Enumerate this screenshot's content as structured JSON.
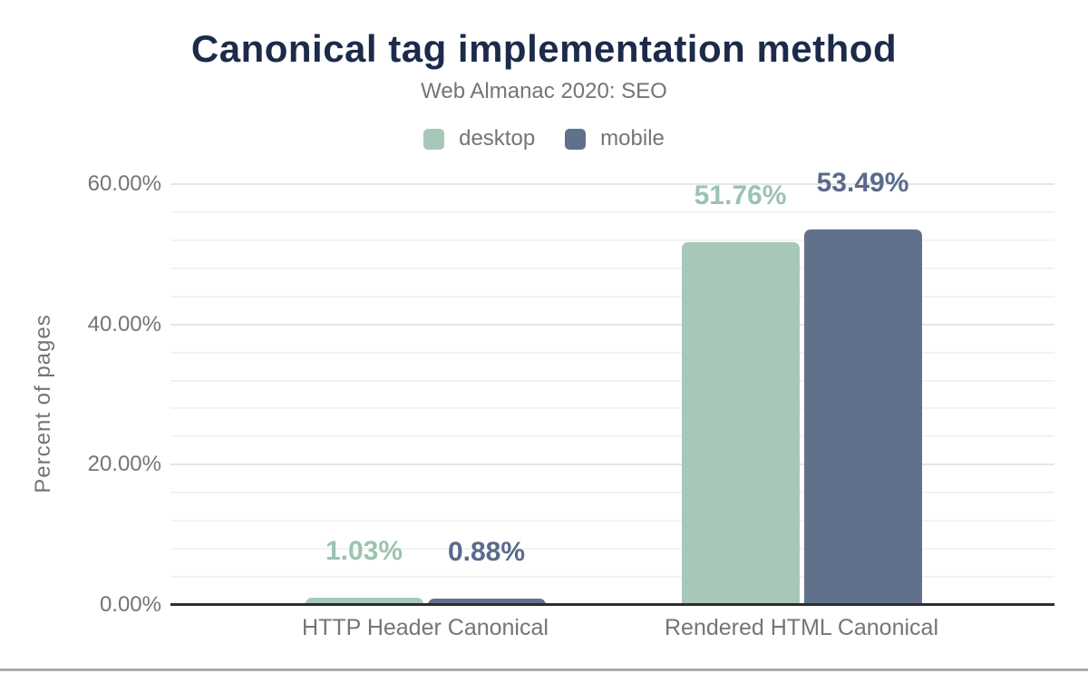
{
  "header": {
    "title": "Canonical tag implementation method",
    "subtitle": "Web Almanac 2020: SEO"
  },
  "colors": {
    "title_text": "#1c2b4a",
    "muted_text": "#757575",
    "axis_line": "#2d2d2d",
    "grid_major": "#e6e6e6",
    "grid_minor": "#f3f3f3",
    "bottom_bar": "#a8abb1",
    "desktop": "#a7c8b9",
    "desktop_label": "#9cc3b1",
    "mobile": "#62718b",
    "mobile_label": "#5a6a8c"
  },
  "chart_data": {
    "type": "bar",
    "title": "Canonical tag implementation method",
    "subtitle": "Web Almanac 2020: SEO",
    "categories": [
      "HTTP Header Canonical",
      "Rendered HTML Canonical"
    ],
    "series": [
      {
        "name": "desktop",
        "color": "#a7c8b9",
        "label_color": "#9cc3b1",
        "values": [
          1.03,
          51.76
        ],
        "value_labels": [
          "1.03%",
          "51.76%"
        ]
      },
      {
        "name": "mobile",
        "color": "#62718b",
        "label_color": "#5a6a8c",
        "values": [
          0.88,
          53.49
        ],
        "value_labels": [
          "0.88%",
          "53.49%"
        ]
      }
    ],
    "xlabel": "",
    "ylabel": "Percent of pages",
    "ylim": [
      0,
      60
    ],
    "y_ticks": [
      {
        "value": 0,
        "label": "0.00%"
      },
      {
        "value": 20,
        "label": "20.00%"
      },
      {
        "value": 40,
        "label": "40.00%"
      },
      {
        "value": 60,
        "label": "60.00%"
      }
    ],
    "grid": "horizontal; minor lines every 4%, major lines every 20%",
    "legend_position": "top-center"
  }
}
